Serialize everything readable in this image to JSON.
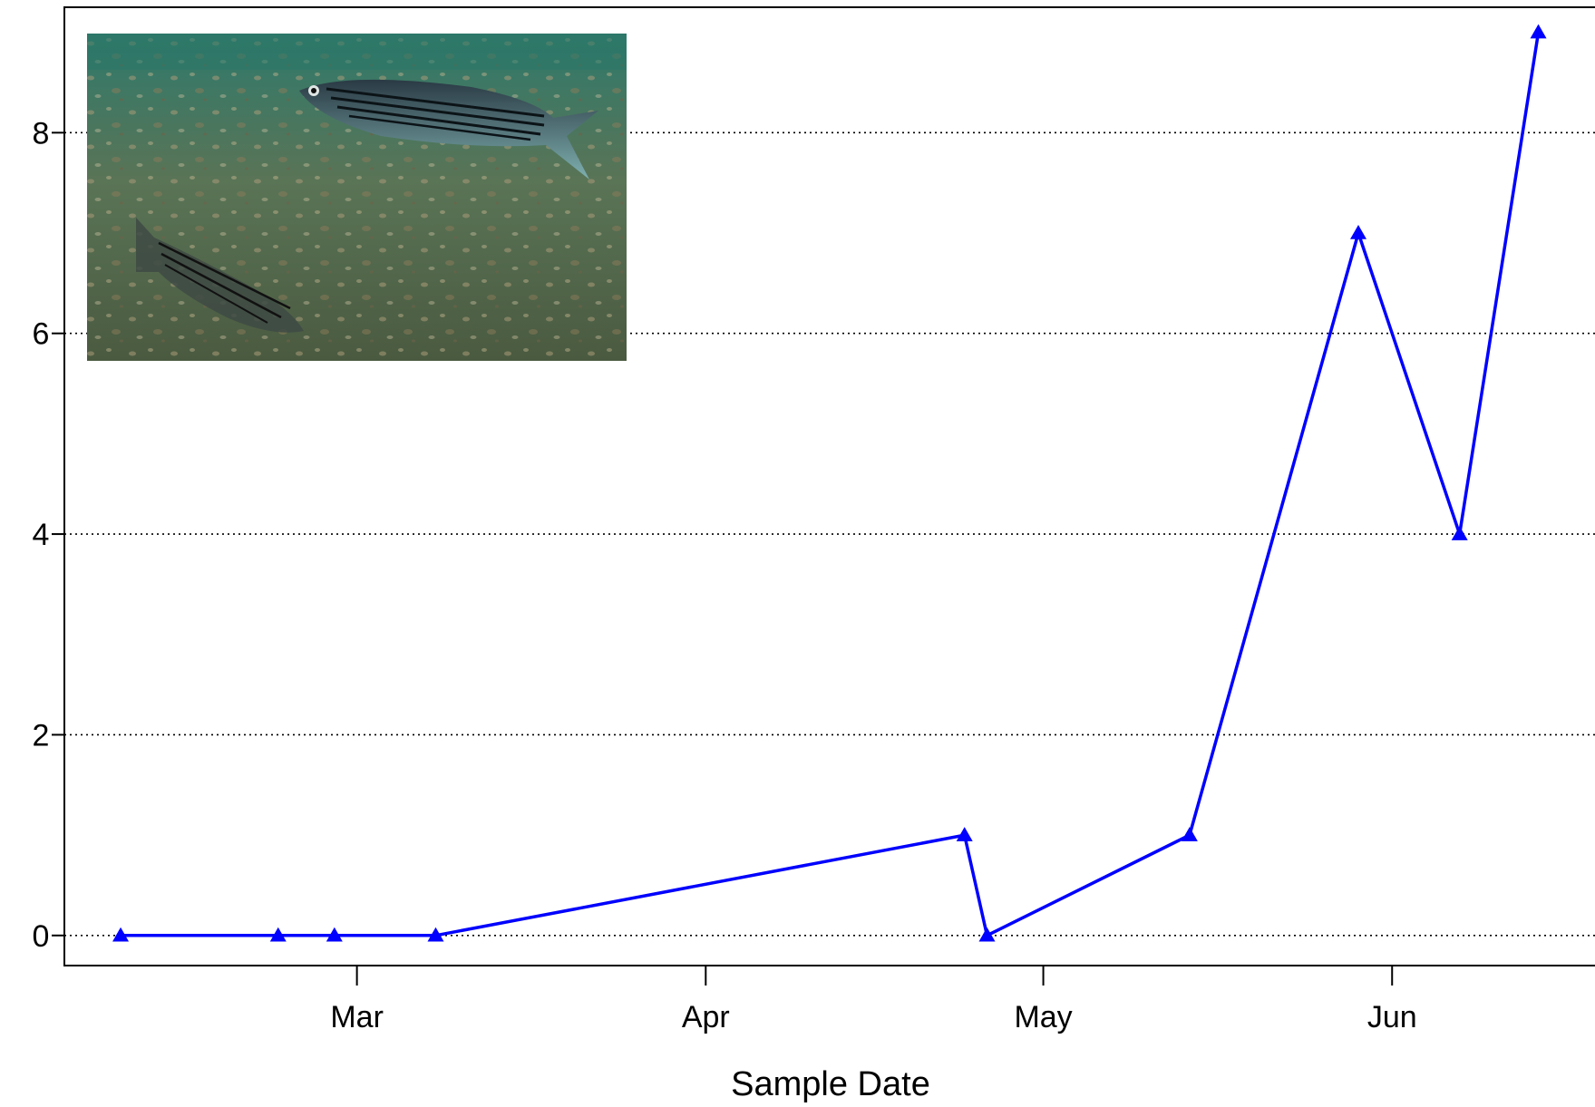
{
  "chart_data": {
    "type": "line",
    "xlabel": "Sample Date",
    "ylabel": "",
    "x": [
      "2019-02-08",
      "2019-02-22",
      "2019-02-27",
      "2019-03-08",
      "2019-04-24",
      "2019-04-26",
      "2019-05-14",
      "2019-05-29",
      "2019-06-07",
      "2019-06-14"
    ],
    "y": [
      0,
      0,
      0,
      0,
      1,
      0,
      1,
      7,
      4,
      9
    ],
    "xlim": [
      "2019-02-03",
      "2019-06-20"
    ],
    "ylim": [
      -0.3,
      9.25
    ],
    "x_ticks": [
      {
        "date": "2019-03-01",
        "label": "Mar"
      },
      {
        "date": "2019-04-01",
        "label": "Apr"
      },
      {
        "date": "2019-05-01",
        "label": "May"
      },
      {
        "date": "2019-06-01",
        "label": "Jun"
      }
    ],
    "y_ticks": [
      0,
      2,
      4,
      6,
      8
    ],
    "grid": "horizontal dotted",
    "line_color": "#0000ff",
    "marker": "triangle",
    "inset_image": "underwater photo of two striped bass swimming over a pebbly seabed"
  }
}
